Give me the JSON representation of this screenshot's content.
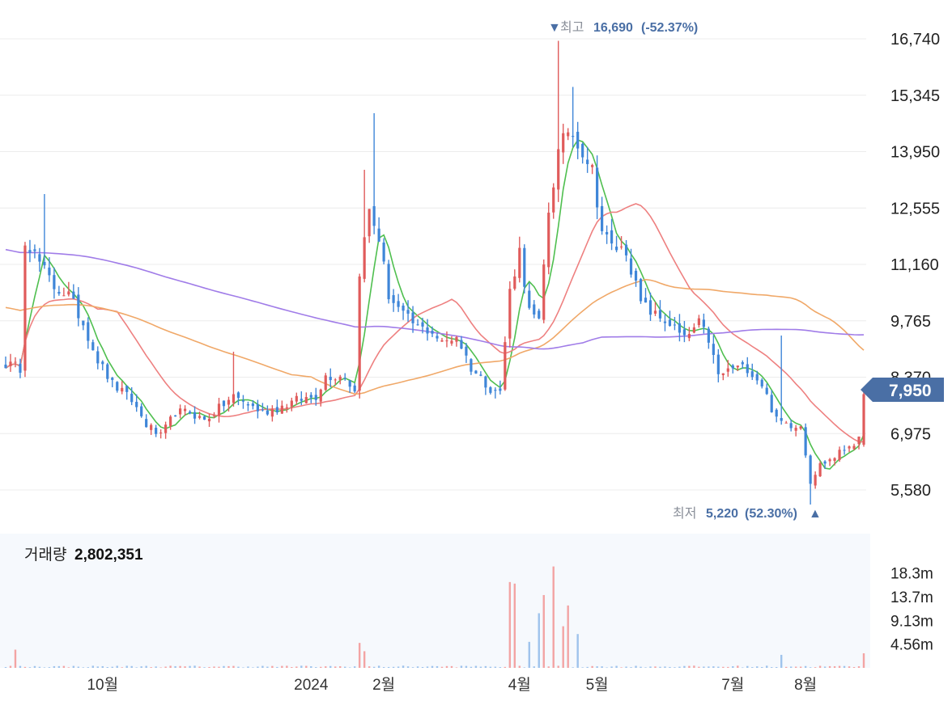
{
  "chart_data": {
    "type": "candlestick",
    "price_axis": {
      "range": [
        4900,
        17100
      ],
      "ticks": [
        "16,740",
        "15,345",
        "13,950",
        "12,555",
        "11,160",
        "9,765",
        "8,370",
        "6,975",
        "5,580"
      ]
    },
    "current_price": {
      "label": "7,950",
      "value": 7950,
      "color": "#4a6fa5"
    },
    "high_annotation": {
      "marker": "▼",
      "label": "최고",
      "value": "16,690",
      "change": "(-52.37%)",
      "price": 16690
    },
    "low_annotation": {
      "label": "최저",
      "value": "5,220",
      "change": "(52.30%)",
      "marker": "▲",
      "price": 5220
    },
    "x_axis": {
      "labels": [
        {
          "text": "10월",
          "index": 20
        },
        {
          "text": "2024",
          "index": 63
        },
        {
          "text": "2월",
          "index": 78
        },
        {
          "text": "4월",
          "index": 106
        },
        {
          "text": "5월",
          "index": 122
        },
        {
          "text": "7월",
          "index": 150
        },
        {
          "text": "8월",
          "index": 165
        }
      ],
      "bars": 178
    },
    "volume": {
      "title": "거래량",
      "value": "2,802,351",
      "ticks": [
        {
          "label": "18.3m",
          "value": 18.3
        },
        {
          "label": "13.7m",
          "value": 13.7
        },
        {
          "label": "9.13m",
          "value": 9.13
        },
        {
          "label": "4.56m",
          "value": 4.56
        }
      ],
      "max": 25.5
    },
    "anchors": [
      [
        0,
        8700
      ],
      [
        3,
        8600
      ],
      [
        4,
        11800
      ],
      [
        7,
        11200
      ],
      [
        10,
        10600
      ],
      [
        13,
        10400
      ],
      [
        16,
        9700
      ],
      [
        19,
        8800
      ],
      [
        22,
        8200
      ],
      [
        26,
        7800
      ],
      [
        29,
        7200
      ],
      [
        32,
        6900
      ],
      [
        35,
        7500
      ],
      [
        38,
        7500
      ],
      [
        41,
        7300
      ],
      [
        44,
        7600
      ],
      [
        47,
        7900
      ],
      [
        50,
        7700
      ],
      [
        53,
        7500
      ],
      [
        56,
        7600
      ],
      [
        60,
        7800
      ],
      [
        64,
        7900
      ],
      [
        66,
        8400
      ],
      [
        70,
        8400
      ],
      [
        72,
        8000
      ],
      [
        73,
        11000
      ],
      [
        75,
        12500
      ],
      [
        77,
        11800
      ],
      [
        79,
        10400
      ],
      [
        82,
        9900
      ],
      [
        85,
        9600
      ],
      [
        88,
        9500
      ],
      [
        90,
        9200
      ],
      [
        93,
        9400
      ],
      [
        96,
        8600
      ],
      [
        100,
        8100
      ],
      [
        102,
        8000
      ],
      [
        104,
        10500
      ],
      [
        106,
        11500
      ],
      [
        108,
        10000
      ],
      [
        110,
        9700
      ],
      [
        112,
        12500
      ],
      [
        114,
        13900
      ],
      [
        116,
        14500
      ],
      [
        118,
        14200
      ],
      [
        121,
        13500
      ],
      [
        123,
        12000
      ],
      [
        125,
        11600
      ],
      [
        128,
        11500
      ],
      [
        131,
        10200
      ],
      [
        134,
        9900
      ],
      [
        137,
        9700
      ],
      [
        140,
        9300
      ],
      [
        143,
        9700
      ],
      [
        145,
        9300
      ],
      [
        147,
        8400
      ],
      [
        150,
        8600
      ],
      [
        153,
        8600
      ],
      [
        156,
        8200
      ],
      [
        159,
        7300
      ],
      [
        162,
        7200
      ],
      [
        164,
        7200
      ],
      [
        166,
        5800
      ],
      [
        168,
        6200
      ],
      [
        171,
        6400
      ],
      [
        174,
        6700
      ],
      [
        176,
        6800
      ],
      [
        177,
        7950
      ]
    ],
    "spikes": [
      {
        "index": 8,
        "high": 12900
      },
      {
        "index": 47,
        "high": 9000
      },
      {
        "index": 74,
        "high": 13500
      },
      {
        "index": 76,
        "high": 14900
      },
      {
        "index": 114,
        "high": 16690
      },
      {
        "index": 117,
        "high": 15550
      },
      {
        "index": 160,
        "high": 9400
      },
      {
        "index": 166,
        "low": 5220
      }
    ],
    "volume_spikes": [
      {
        "index": 104,
        "value": 16.5
      },
      {
        "index": 105,
        "value": 16.2
      },
      {
        "index": 113,
        "value": 19.5
      },
      {
        "index": 110,
        "value": 10.5
      },
      {
        "index": 111,
        "value": 14.0
      },
      {
        "index": 108,
        "value": 5.0
      },
      {
        "index": 115,
        "value": 8.0
      },
      {
        "index": 116,
        "value": 12.0
      },
      {
        "index": 118,
        "value": 6.5
      },
      {
        "index": 73,
        "value": 4.8
      },
      {
        "index": 74,
        "value": 3.2
      },
      {
        "index": 2,
        "value": 3.5
      },
      {
        "index": 177,
        "value": 2.8
      },
      {
        "index": 160,
        "value": 2.5
      }
    ],
    "moving_averages": [
      {
        "period": 5,
        "color": "#4fbf4f"
      },
      {
        "period": 20,
        "color": "#ee8080"
      },
      {
        "period": 60,
        "color": "#f0a868"
      },
      {
        "period": 120,
        "color": "#a07ce8"
      }
    ],
    "colors": {
      "up": "#e05b5b",
      "down": "#3f86d8",
      "grid": "#ececec"
    }
  }
}
